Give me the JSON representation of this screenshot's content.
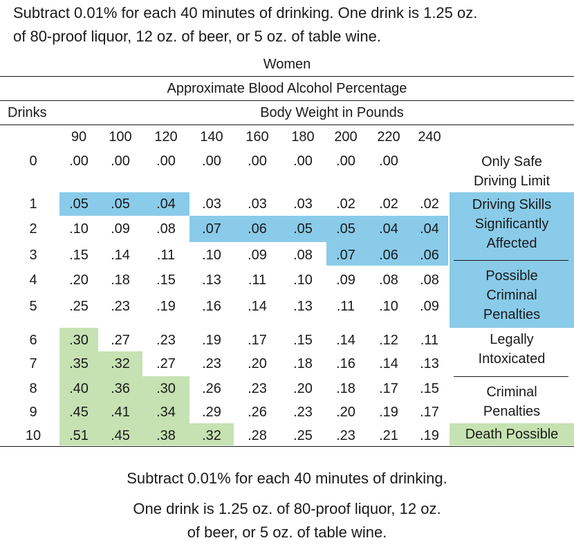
{
  "top_note": {
    "line1": "Subtract 0.01% for each 40 minutes of drinking. One drink is 1.25 oz.",
    "line2": "of 80-proof liquor, 12 oz. of beer, or 5 oz. of table wine."
  },
  "table": {
    "title": "Women",
    "subtitle": "Approximate Blood Alcohol Percentage",
    "drinks_label": "Drinks",
    "weight_label": "Body Weight in Pounds",
    "weights": [
      "90",
      "100",
      "120",
      "140",
      "160",
      "180",
      "200",
      "220",
      "240"
    ],
    "rows": [
      {
        "drinks": "0",
        "values": [
          ".00",
          ".00",
          ".00",
          ".00",
          ".00",
          ".00",
          ".00",
          ".00",
          ""
        ]
      },
      {
        "drinks": "1",
        "values": [
          ".05",
          ".05",
          ".04",
          ".03",
          ".03",
          ".03",
          ".02",
          ".02",
          ".02"
        ]
      },
      {
        "drinks": "2",
        "values": [
          ".10",
          ".09",
          ".08",
          ".07",
          ".06",
          ".05",
          ".05",
          ".04",
          ".04"
        ]
      },
      {
        "drinks": "3",
        "values": [
          ".15",
          ".14",
          ".11",
          ".10",
          ".09",
          ".08",
          ".07",
          ".06",
          ".06"
        ]
      },
      {
        "drinks": "4",
        "values": [
          ".20",
          ".18",
          ".15",
          ".13",
          ".11",
          ".10",
          ".09",
          ".08",
          ".08"
        ]
      },
      {
        "drinks": "5",
        "values": [
          ".25",
          ".23",
          ".19",
          ".16",
          ".14",
          ".13",
          ".11",
          ".10",
          ".09"
        ]
      },
      {
        "drinks": "6",
        "values": [
          ".30",
          ".27",
          ".23",
          ".19",
          ".17",
          ".15",
          ".14",
          ".12",
          ".11"
        ]
      },
      {
        "drinks": "7",
        "values": [
          ".35",
          ".32",
          ".27",
          ".23",
          ".20",
          ".18",
          ".16",
          ".14",
          ".13"
        ]
      },
      {
        "drinks": "8",
        "values": [
          ".40",
          ".36",
          ".30",
          ".26",
          ".23",
          ".20",
          ".18",
          ".17",
          ".15"
        ]
      },
      {
        "drinks": "9",
        "values": [
          ".45",
          ".41",
          ".34",
          ".29",
          ".26",
          ".23",
          ".20",
          ".19",
          ".17"
        ]
      },
      {
        "drinks": "10",
        "values": [
          ".51",
          ".45",
          ".38",
          ".32",
          ".28",
          ".25",
          ".23",
          ".21",
          ".19"
        ]
      }
    ],
    "labels": {
      "only_safe": [
        "Only Safe",
        "Driving Limit"
      ],
      "driving_skills": [
        "Driving Skills",
        "Significantly",
        "Affected"
      ],
      "possible_criminal": [
        "Possible",
        "Criminal",
        "Penalties"
      ],
      "legally_intoxicated": [
        "Legally",
        "Intoxicated"
      ],
      "criminal_penalties": [
        "Criminal",
        "Penalties"
      ],
      "death_possible": "Death Possible"
    },
    "colors": {
      "blue": "#89cbe9",
      "green": "#c6e2b2"
    }
  },
  "bottom_note": {
    "line1": "Subtract 0.01% for each 40 minutes of drinking.",
    "line2": "One drink is 1.25 oz. of 80-proof liquor, 12 oz.",
    "line3": "of beer, or 5 oz. of table wine."
  }
}
